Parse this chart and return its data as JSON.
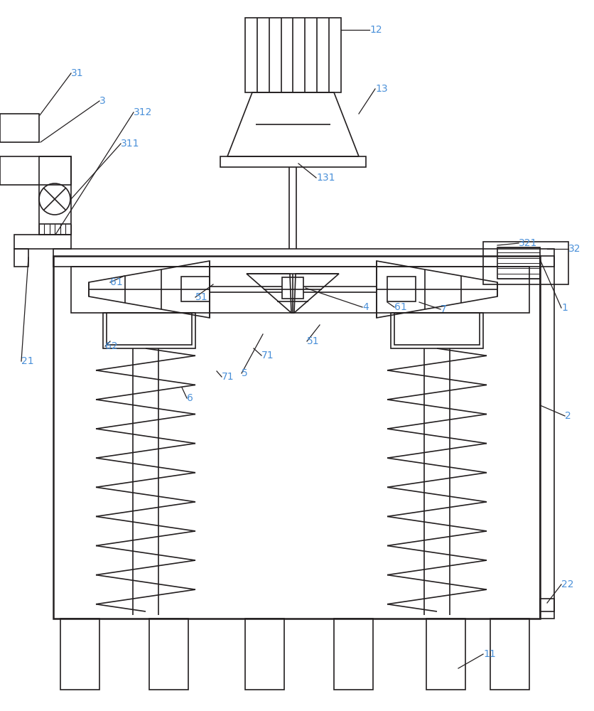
{
  "bg_color": "#ffffff",
  "line_color": "#231f20",
  "label_color": "#4a90d9",
  "lw": 1.2,
  "tlw": 1.8,
  "fig_width": 8.37,
  "fig_height": 10.0
}
